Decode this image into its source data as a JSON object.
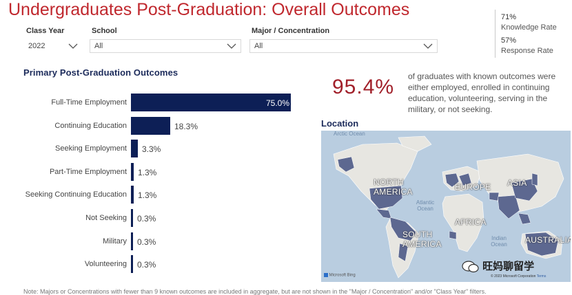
{
  "title": "Undergraduates Post-Graduation: Overall Outcomes",
  "kpis": [
    {
      "value": "71%",
      "label": "Knowledge Rate"
    },
    {
      "value": "57%",
      "label": "Response Rate"
    }
  ],
  "filters": {
    "class_year": {
      "label": "Class Year",
      "value": "2022"
    },
    "school": {
      "label": "School",
      "value": "All"
    },
    "major": {
      "label": "Major / Concentration",
      "value": "All"
    }
  },
  "outcomes": {
    "title": "Primary Post-Graduation Outcomes",
    "chart_data": {
      "type": "bar",
      "orientation": "horizontal",
      "categories": [
        "Full-Time Employment",
        "Continuing Education",
        "Seeking Employment",
        "Part-Time Employment",
        "Seeking Continuing Education",
        "Not Seeking",
        "Military",
        "Volunteering"
      ],
      "values": [
        75.0,
        18.3,
        3.3,
        1.3,
        1.3,
        0.3,
        0.3,
        0.3
      ],
      "labels": [
        "75.0%",
        "18.3%",
        "3.3%",
        "1.3%",
        "1.3%",
        "0.3%",
        "0.3%",
        "0.3%"
      ],
      "color": "#0d1f56"
    }
  },
  "highlight": {
    "value": "95.4%",
    "description": "of graduates with known outcomes were either employed, enrolled in continuing education, volunteering, serving in the military, or not seeking."
  },
  "location": {
    "title": "Location",
    "regions": [
      "NORTH AMERICA",
      "EUROPE",
      "ASIA",
      "AFRICA",
      "SOUTH AMERICA",
      "AUSTRALIA"
    ],
    "oceans": [
      "Arctic Ocean",
      "Atlantic Ocean",
      "Indian Ocean"
    ],
    "provider": "Microsoft Bing",
    "copyright": "© 2023 Microsoft Corporation",
    "terms": "Terms"
  },
  "watermark": "旺妈聊留学",
  "note": "Note: Majors or Concentrations with fewer than 9 known outcomes are included in aggregate, but are not shown in the \"Major / Concentration\" and/or \"Class Year\" filters."
}
